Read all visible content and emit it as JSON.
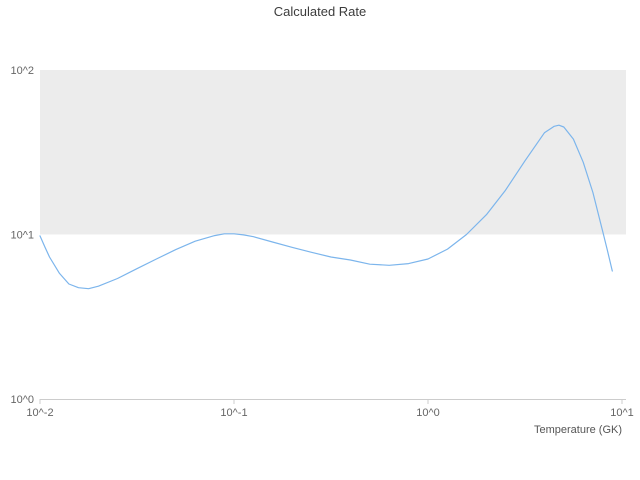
{
  "title": "Calculated Rate",
  "x_axis": {
    "label": "Temperature (GK)",
    "ticks": [
      {
        "label": "10^-2",
        "log": -2
      },
      {
        "label": "10^-1",
        "log": -1
      },
      {
        "label": "10^0",
        "log": 0
      },
      {
        "label": "10^1",
        "log": 1
      }
    ]
  },
  "y_axis": {
    "ticks": [
      {
        "label": "10^0",
        "log": 0
      },
      {
        "label": "10^1",
        "log": 1
      },
      {
        "label": "10^2",
        "log": 2
      }
    ]
  },
  "colors": {
    "line": "#7cb5ec",
    "band": "#ececec",
    "tick_text": "#666666",
    "title_text": "#3c3c3c",
    "axis_line": "#cccccc"
  },
  "chart_data": {
    "type": "line",
    "title": "Calculated Rate",
    "xlabel": "Temperature (GK)",
    "ylabel": "",
    "x_scale": "log",
    "y_scale": "log",
    "xlim": [
      0.01,
      10
    ],
    "ylim": [
      1,
      100
    ],
    "grid": "off",
    "legend": "none",
    "alternate_band": {
      "from": 10,
      "to": 100,
      "color": "#ececec"
    },
    "series": [
      {
        "name": "Calculated Rate",
        "color": "#7cb5ec",
        "points": [
          [
            0.01,
            9.8
          ],
          [
            0.0106,
            8.4
          ],
          [
            0.0112,
            7.3
          ],
          [
            0.0126,
            5.8
          ],
          [
            0.0141,
            5.0
          ],
          [
            0.0158,
            4.75
          ],
          [
            0.0178,
            4.68
          ],
          [
            0.02,
            4.85
          ],
          [
            0.0251,
            5.4
          ],
          [
            0.0316,
            6.2
          ],
          [
            0.0398,
            7.1
          ],
          [
            0.0501,
            8.1
          ],
          [
            0.0631,
            9.1
          ],
          [
            0.0794,
            9.85
          ],
          [
            0.0891,
            10.1
          ],
          [
            0.1,
            10.1
          ],
          [
            0.112,
            9.95
          ],
          [
            0.126,
            9.7
          ],
          [
            0.158,
            9.0
          ],
          [
            0.2,
            8.35
          ],
          [
            0.251,
            7.8
          ],
          [
            0.316,
            7.3
          ],
          [
            0.398,
            7.0
          ],
          [
            0.501,
            6.6
          ],
          [
            0.631,
            6.5
          ],
          [
            0.794,
            6.65
          ],
          [
            1.0,
            7.1
          ],
          [
            1.26,
            8.15
          ],
          [
            1.58,
            10.0
          ],
          [
            2.0,
            13.2
          ],
          [
            2.51,
            18.6
          ],
          [
            3.16,
            28.0
          ],
          [
            3.98,
            41.5
          ],
          [
            4.47,
            45.5
          ],
          [
            4.73,
            46.2
          ],
          [
            5.01,
            45.0
          ],
          [
            5.62,
            38.0
          ],
          [
            6.31,
            27.5
          ],
          [
            7.08,
            18.0
          ],
          [
            7.94,
            10.5
          ],
          [
            8.41,
            8.0
          ],
          [
            8.91,
            6.0
          ]
        ]
      }
    ]
  }
}
